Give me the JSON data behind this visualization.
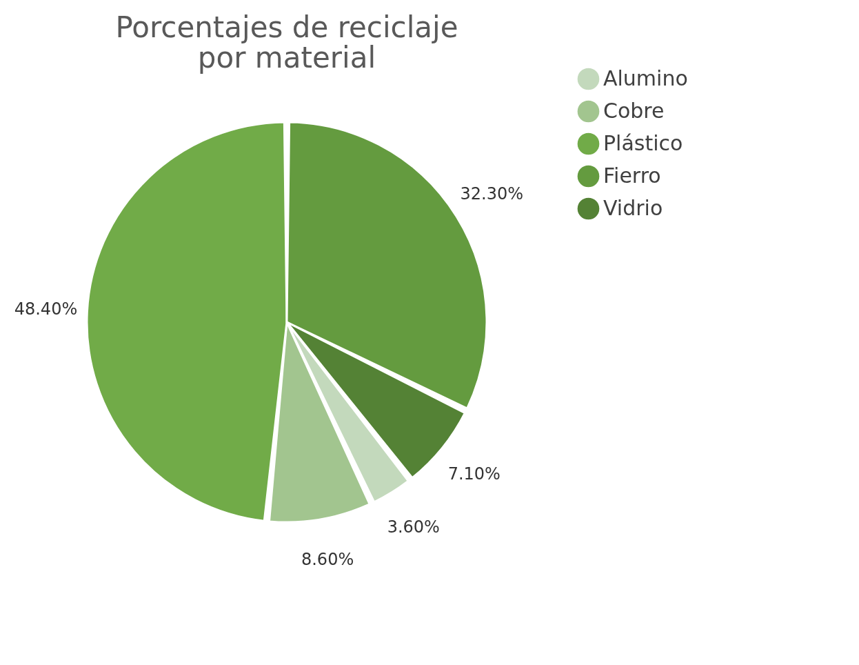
{
  "chart_data": {
    "type": "pie",
    "title": "Porcentajes de reciclaje por material",
    "categories": [
      "Alumino",
      "Cobre",
      "Plástico",
      "Fierro",
      "Vidrio"
    ],
    "values": [
      3.6,
      8.6,
      48.4,
      32.3,
      7.1
    ],
    "colors": [
      "#c3d9bc",
      "#a2c58f",
      "#71ab48",
      "#649b3f",
      "#548235"
    ],
    "value_labels": [
      "3.60%",
      "8.60%",
      "48.40%",
      "32.30%",
      "7.10%"
    ],
    "legend": "right"
  }
}
